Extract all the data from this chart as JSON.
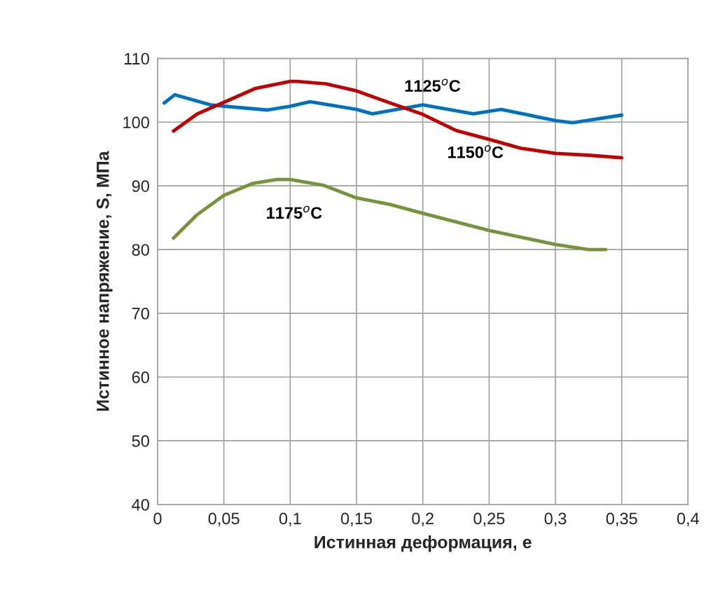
{
  "chart_data": {
    "type": "line",
    "xlabel": "Истинная деформация, е",
    "ylabel": "Истинное напряжение, S, МПа",
    "xlim": [
      0,
      0.4
    ],
    "ylim": [
      40,
      110
    ],
    "xticks": [
      0,
      {
        "value": 0.05,
        "label": "0,05"
      },
      {
        "value": 0.1,
        "label": "0,1"
      },
      {
        "value": 0.15,
        "label": "0,15"
      },
      {
        "value": 0.2,
        "label": "0,2"
      },
      {
        "value": 0.25,
        "label": "0,25"
      },
      {
        "value": 0.3,
        "label": "0,3"
      },
      {
        "value": 0.35,
        "label": "0,35"
      },
      {
        "value": 0.4,
        "label": "0,4"
      }
    ],
    "yticks": [
      40,
      50,
      60,
      70,
      80,
      90,
      100,
      110
    ],
    "grid": true,
    "legend": false,
    "marker": "none",
    "line_style": "solid",
    "series": [
      {
        "name": "1125$^{o}$C",
        "color": "#0070c0",
        "x": [
          0.005,
          0.013,
          0.04,
          0.05,
          0.083,
          0.1,
          0.115,
          0.15,
          0.162,
          0.2,
          0.238,
          0.259,
          0.301,
          0.313,
          0.35
        ],
        "values": [
          103.0,
          104.3,
          102.7,
          102.5,
          101.9,
          102.5,
          103.2,
          102.0,
          101.3,
          102.7,
          101.3,
          102.0,
          100.2,
          99.9,
          101.1
        ]
      },
      {
        "name": "1150$^{o}$C",
        "color": "#c00000",
        "x": [
          0.012,
          0.03,
          0.05,
          0.074,
          0.1,
          0.105,
          0.127,
          0.15,
          0.174,
          0.199,
          0.225,
          0.25,
          0.274,
          0.3,
          0.325,
          0.35
        ],
        "values": [
          98.6,
          101.3,
          103.1,
          105.3,
          106.4,
          106.4,
          106.0,
          104.9,
          103.1,
          101.3,
          98.7,
          97.3,
          95.9,
          95.1,
          94.8,
          94.4
        ]
      },
      {
        "name": "1175$^{o}$C",
        "color": "#77933c",
        "x": [
          0.012,
          0.03,
          0.05,
          0.072,
          0.09,
          0.1,
          0.125,
          0.15,
          0.175,
          0.2,
          0.25,
          0.3,
          0.325,
          0.338
        ],
        "values": [
          81.8,
          85.5,
          88.5,
          90.4,
          91.0,
          91.0,
          90.1,
          88.1,
          87.1,
          85.7,
          83.0,
          80.8,
          80.0,
          80.0
        ]
      }
    ]
  }
}
